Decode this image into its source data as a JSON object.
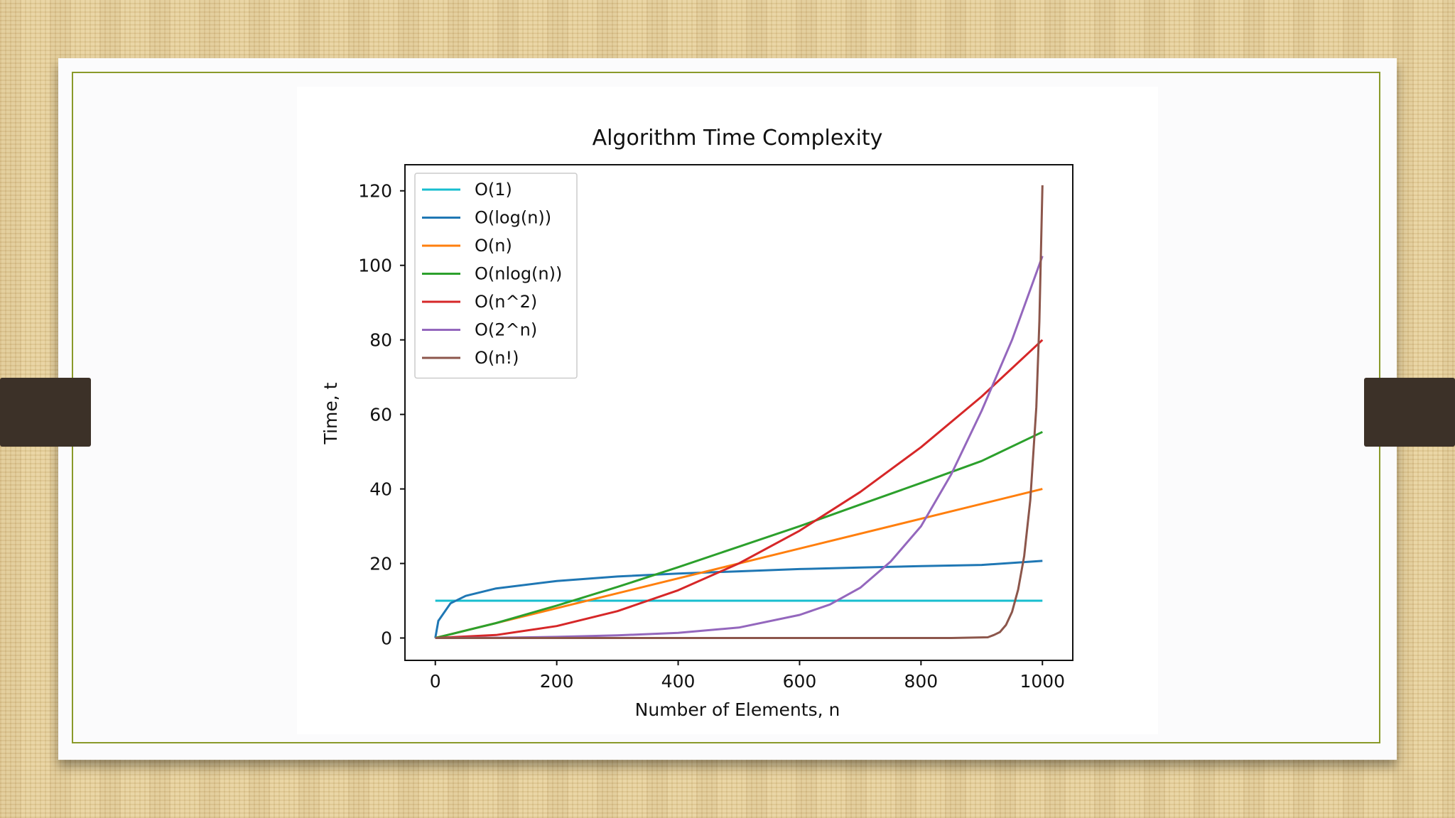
{
  "chart_data": {
    "type": "line",
    "title": "Algorithm Time Complexity",
    "xlabel": "Number of Elements, n",
    "ylabel": "Time, t",
    "xlim": [
      -50,
      1050
    ],
    "ylim": [
      -6,
      127
    ],
    "xticks": [
      "0",
      "200",
      "400",
      "600",
      "800",
      "1000"
    ],
    "yticks": [
      "0",
      "20",
      "40",
      "60",
      "80",
      "100",
      "120"
    ],
    "grid": false,
    "legend": "top-left",
    "series": [
      {
        "name": "O(1)",
        "color": "#17becf",
        "x": [
          0,
          1000
        ],
        "y": [
          10,
          10
        ]
      },
      {
        "name": "O(log(n))",
        "color": "#1f77b4",
        "x": [
          0,
          5,
          25,
          50,
          100,
          200,
          300,
          400,
          500,
          600,
          700,
          800,
          900,
          1000
        ],
        "y": [
          0,
          4.6,
          9.3,
          11.3,
          13.3,
          15.3,
          16.5,
          17.3,
          17.9,
          18.5,
          18.9,
          19.3,
          19.6,
          20.7
        ]
      },
      {
        "name": "O(n)",
        "color": "#ff7f0e",
        "x": [
          0,
          1000
        ],
        "y": [
          0,
          40
        ]
      },
      {
        "name": "O(nlog(n))",
        "color": "#2ca02c",
        "x": [
          0,
          100,
          200,
          300,
          400,
          500,
          600,
          700,
          800,
          900,
          1000
        ],
        "y": [
          0,
          4.0,
          8.7,
          13.7,
          19.0,
          24.5,
          30.0,
          35.8,
          41.6,
          47.5,
          55.3
        ]
      },
      {
        "name": "O(n^2)",
        "color": "#d62728",
        "x": [
          0,
          100,
          200,
          300,
          400,
          500,
          600,
          700,
          800,
          900,
          1000
        ],
        "y": [
          0,
          0.8,
          3.2,
          7.2,
          12.8,
          20.0,
          28.8,
          39.2,
          51.2,
          64.8,
          80.0
        ]
      },
      {
        "name": "O(2^n)",
        "color": "#9467bd",
        "x": [
          0,
          100,
          200,
          300,
          400,
          500,
          600,
          650,
          700,
          750,
          800,
          850,
          900,
          950,
          1000
        ],
        "y": [
          0,
          0.08,
          0.3,
          0.7,
          1.4,
          2.8,
          6.2,
          9.0,
          13.5,
          20.5,
          30.0,
          44.0,
          61.0,
          80.0,
          102.5
        ]
      },
      {
        "name": "O(n!)",
        "color": "#8c564b",
        "x": [
          0,
          850,
          910,
          920,
          930,
          940,
          950,
          960,
          970,
          980,
          990,
          995,
          1000
        ],
        "y": [
          0,
          0,
          0.2,
          0.8,
          1.6,
          3.5,
          7.0,
          13.0,
          22.0,
          37.0,
          62.0,
          85.0,
          121.5
        ]
      }
    ]
  }
}
